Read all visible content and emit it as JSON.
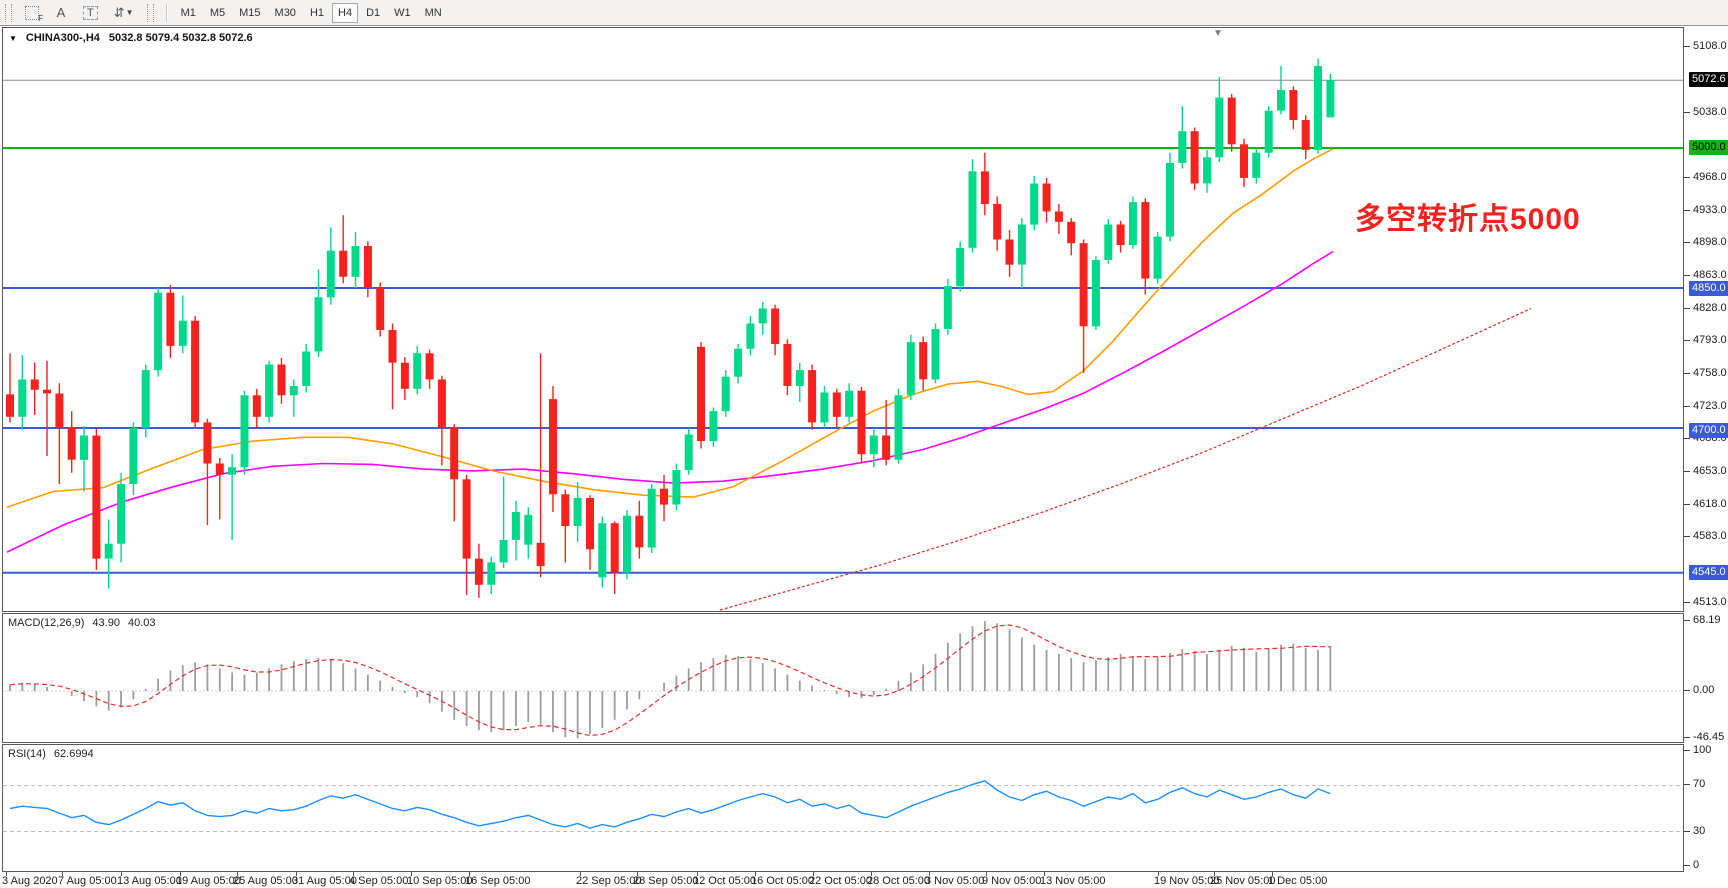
{
  "window": {
    "symbol": "CHINA300-,H4",
    "ohlc_text": "5032.8 5079.4 5032.8 5072.6"
  },
  "toolbar": {
    "tools": [
      {
        "id": "dotted-grid-f-icon",
        "glyph": "F"
      },
      {
        "id": "text-tool-icon",
        "glyph": "A"
      },
      {
        "id": "label-tool-icon",
        "glyph": "T"
      },
      {
        "id": "arrows-tool-icon",
        "glyph": "⇵"
      },
      {
        "id": "dropdown-caret-icon",
        "glyph": "▼"
      }
    ],
    "timeframes": [
      "M1",
      "M5",
      "M15",
      "M30",
      "H1",
      "H4",
      "D1",
      "W1",
      "MN"
    ],
    "active": "H4"
  },
  "colors": {
    "bull": "#00d98a",
    "bear": "#f5221d",
    "ma_fast": "#ff9d00",
    "ma_mid": "#ff00ff",
    "trend": "#d32f22",
    "hline_blue": "#3a5bd9",
    "hline_green": "#0fb40f",
    "price_line": "#8c8c8c",
    "macd_bar": "#9d9d9d",
    "macd_signal": "#e23131",
    "rsi": "#1e90ff",
    "annotation": "#f2231e"
  },
  "chart_data": {
    "type": "candlestick",
    "symbol": "CHINA300-",
    "timeframe": "H4",
    "current": {
      "open": 5032.8,
      "high": 5079.4,
      "low": 5032.8,
      "close": 5072.6
    },
    "annotation": {
      "text": "多空转折点5000"
    },
    "price_axis": {
      "ticks": [
        [
          "5108.0",
          46
        ],
        [
          "5038.0",
          112
        ],
        [
          "4968.0",
          177
        ],
        [
          "4933.0",
          210
        ],
        [
          "4898.0",
          242
        ],
        [
          "4863.0",
          275
        ],
        [
          "4828.0",
          308
        ],
        [
          "4793.0",
          340
        ],
        [
          "4758.0",
          373
        ],
        [
          "4723.0",
          406
        ],
        [
          "4688.0",
          438
        ],
        [
          "4653.0",
          471
        ],
        [
          "4618.0",
          504
        ],
        [
          "4583.0",
          536
        ],
        [
          "4513.0",
          602
        ]
      ],
      "highlights": [
        [
          "5072.6",
          79,
          "#000000",
          "#ffffff"
        ],
        [
          "5000.0",
          147,
          "#0fb40f",
          "#000000"
        ],
        [
          "4850.0",
          288,
          "#3a5bd9",
          "#ffffff"
        ],
        [
          "4700.0",
          430,
          "#3a5bd9",
          "#ffffff"
        ],
        [
          "4545.0",
          572,
          "#3a5bd9",
          "#ffffff"
        ]
      ]
    },
    "hlines": [
      {
        "price": 5072.6,
        "color": "#8c8c8c",
        "w": 1
      },
      {
        "price": 5000.0,
        "color": "#0fb40f",
        "w": 2
      },
      {
        "price": 4850.0,
        "color": "#3a5bd9",
        "w": 2
      },
      {
        "price": 4700.0,
        "color": "#3a5bd9",
        "w": 2
      },
      {
        "price": 4545.0,
        "color": "#3a5bd9",
        "w": 2
      }
    ],
    "time_axis": [
      [
        "3 Aug 2020",
        2
      ],
      [
        "7 Aug 05:00",
        58
      ],
      [
        "13 Aug 05:00",
        117
      ],
      [
        "19 Aug 05:00",
        176
      ],
      [
        "25 Aug 05:00",
        233
      ],
      [
        "31 Aug 05:00",
        292
      ],
      [
        "4 Sep 05:00",
        349
      ],
      [
        "10 Sep 05:00",
        407
      ],
      [
        "16 Sep 05:00",
        465
      ],
      [
        "22 Sep 05:00",
        576
      ],
      [
        "28 Sep 05:00",
        633
      ],
      [
        "12 Oct 05:00",
        693
      ],
      [
        "16 Oct 05:00",
        751
      ],
      [
        "22 Oct 05:00",
        809
      ],
      [
        "28 Oct 05:00",
        867
      ],
      [
        "3 Nov 05:00",
        925
      ],
      [
        "9 Nov 05:00",
        982
      ],
      [
        "13 Nov 05:00",
        1040
      ],
      [
        "19 Nov 05:00",
        1154
      ],
      [
        "25 Nov 05:00",
        1210
      ],
      [
        "1 Dec 05:00",
        1268
      ]
    ],
    "candles": [
      [
        4736,
        4780,
        4706,
        4712
      ],
      [
        4712,
        4778,
        4698,
        4752
      ],
      [
        4752,
        4770,
        4714,
        4741
      ],
      [
        4741,
        4772,
        4670,
        4737
      ],
      [
        4737,
        4748,
        4640,
        4700
      ],
      [
        4700,
        4718,
        4652,
        4666
      ],
      [
        4666,
        4702,
        4632,
        4692
      ],
      [
        4692,
        4700,
        4548,
        4560
      ],
      [
        4560,
        4602,
        4528,
        4576
      ],
      [
        4576,
        4652,
        4556,
        4640
      ],
      [
        4640,
        4706,
        4628,
        4700
      ],
      [
        4700,
        4768,
        4690,
        4762
      ],
      [
        4762,
        4850,
        4755,
        4845
      ],
      [
        4845,
        4853,
        4775,
        4788
      ],
      [
        4788,
        4842,
        4780,
        4815
      ],
      [
        4815,
        4820,
        4700,
        4706
      ],
      [
        4706,
        4710,
        4596,
        4662
      ],
      [
        4662,
        4668,
        4602,
        4650
      ],
      [
        4650,
        4672,
        4580,
        4658
      ],
      [
        4658,
        4740,
        4650,
        4735
      ],
      [
        4735,
        4742,
        4700,
        4712
      ],
      [
        4712,
        4772,
        4706,
        4768
      ],
      [
        4768,
        4775,
        4726,
        4735
      ],
      [
        4735,
        4752,
        4712,
        4745
      ],
      [
        4745,
        4790,
        4738,
        4782
      ],
      [
        4782,
        4870,
        4776,
        4840
      ],
      [
        4840,
        4915,
        4832,
        4890
      ],
      [
        4890,
        4928,
        4855,
        4862
      ],
      [
        4862,
        4910,
        4850,
        4895
      ],
      [
        4895,
        4900,
        4840,
        4850
      ],
      [
        4850,
        4856,
        4798,
        4805
      ],
      [
        4805,
        4812,
        4720,
        4770
      ],
      [
        4770,
        4776,
        4730,
        4742
      ],
      [
        4742,
        4788,
        4736,
        4780
      ],
      [
        4780,
        4784,
        4742,
        4752
      ],
      [
        4752,
        4756,
        4660,
        4700
      ],
      [
        4700,
        4704,
        4600,
        4645
      ],
      [
        4645,
        4650,
        4521,
        4560
      ],
      [
        4560,
        4576,
        4518,
        4532
      ],
      [
        4532,
        4562,
        4522,
        4556
      ],
      [
        4556,
        4648,
        4550,
        4580
      ],
      [
        4580,
        4622,
        4558,
        4610
      ],
      [
        4575,
        4615,
        4560,
        4607
      ],
      [
        4577,
        4780,
        4540,
        4552
      ],
      [
        4731,
        4745,
        4610,
        4629
      ],
      [
        4629,
        4634,
        4556,
        4595
      ],
      [
        4595,
        4642,
        4578,
        4625
      ],
      [
        4625,
        4628,
        4548,
        4570
      ],
      [
        4540,
        4605,
        4529,
        4598
      ],
      [
        4598,
        4600,
        4522,
        4545
      ],
      [
        4545,
        4612,
        4538,
        4606
      ],
      [
        4606,
        4622,
        4560,
        4572
      ],
      [
        4572,
        4640,
        4566,
        4635
      ],
      [
        4635,
        4650,
        4600,
        4618
      ],
      [
        4618,
        4662,
        4612,
        4655
      ],
      [
        4655,
        4700,
        4650,
        4693
      ],
      [
        4787,
        4792,
        4678,
        4686
      ],
      [
        4686,
        4722,
        4680,
        4718
      ],
      [
        4718,
        4762,
        4712,
        4755
      ],
      [
        4755,
        4790,
        4748,
        4785
      ],
      [
        4785,
        4820,
        4778,
        4812
      ],
      [
        4812,
        4835,
        4800,
        4828
      ],
      [
        4828,
        4832,
        4778,
        4790
      ],
      [
        4790,
        4795,
        4735,
        4745
      ],
      [
        4745,
        4770,
        4728,
        4762
      ],
      [
        4762,
        4768,
        4698,
        4706
      ],
      [
        4706,
        4745,
        4700,
        4738
      ],
      [
        4738,
        4742,
        4700,
        4712
      ],
      [
        4712,
        4748,
        4706,
        4740
      ],
      [
        4740,
        4744,
        4662,
        4672
      ],
      [
        4672,
        4700,
        4658,
        4692
      ],
      [
        4692,
        4730,
        4660,
        4666
      ],
      [
        4666,
        4742,
        4662,
        4735
      ],
      [
        4735,
        4800,
        4730,
        4792
      ],
      [
        4792,
        4798,
        4740,
        4752
      ],
      [
        4752,
        4812,
        4748,
        4806
      ],
      [
        4806,
        4860,
        4800,
        4852
      ],
      [
        4852,
        4900,
        4846,
        4893
      ],
      [
        4893,
        4988,
        4888,
        4975
      ],
      [
        4975,
        4995,
        4928,
        4940
      ],
      [
        4940,
        4948,
        4890,
        4902
      ],
      [
        4902,
        4912,
        4862,
        4875
      ],
      [
        4875,
        4925,
        4850,
        4918
      ],
      [
        4918,
        4970,
        4912,
        4962
      ],
      [
        4962,
        4968,
        4920,
        4932
      ],
      [
        4932,
        4940,
        4908,
        4921
      ],
      [
        4921,
        4925,
        4885,
        4898
      ],
      [
        4898,
        4902,
        4759,
        4809
      ],
      [
        4809,
        4884,
        4805,
        4880
      ],
      [
        4880,
        4924,
        4876,
        4918
      ],
      [
        4918,
        4922,
        4888,
        4896
      ],
      [
        4896,
        4948,
        4892,
        4942
      ],
      [
        4942,
        4946,
        4843,
        4860
      ],
      [
        4860,
        4910,
        4855,
        4905
      ],
      [
        4905,
        4995,
        4900,
        4984
      ],
      [
        4984,
        5045,
        4978,
        5018
      ],
      [
        5018,
        5022,
        4955,
        4962
      ],
      [
        4962,
        4998,
        4952,
        4990
      ],
      [
        4990,
        5076,
        4985,
        5054
      ],
      [
        5054,
        5058,
        4996,
        5004
      ],
      [
        5004,
        5010,
        4958,
        4968
      ],
      [
        4968,
        5000,
        4962,
        4995
      ],
      [
        4995,
        5045,
        4990,
        5040
      ],
      [
        5040,
        5088,
        5036,
        5062
      ],
      [
        5062,
        5066,
        5020,
        5030
      ],
      [
        5030,
        5035,
        4988,
        4998
      ],
      [
        4998,
        5096,
        4994,
        5088
      ],
      [
        5032.8,
        5079.4,
        5032.8,
        5072.6
      ]
    ],
    "moving_averages": {
      "fast": [
        [
          4,
          4615
        ],
        [
          50,
          4632
        ],
        [
          100,
          4636
        ],
        [
          150,
          4657
        ],
        [
          200,
          4677
        ],
        [
          250,
          4686
        ],
        [
          300,
          4690
        ],
        [
          345,
          4690
        ],
        [
          390,
          4683
        ],
        [
          440,
          4669
        ],
        [
          490,
          4654
        ],
        [
          540,
          4643
        ],
        [
          590,
          4634
        ],
        [
          640,
          4628
        ],
        [
          690,
          4626
        ],
        [
          730,
          4637
        ],
        [
          780,
          4665
        ],
        [
          830,
          4695
        ],
        [
          870,
          4718
        ],
        [
          910,
          4736
        ],
        [
          945,
          4747
        ],
        [
          975,
          4750
        ],
        [
          1000,
          4744
        ],
        [
          1025,
          4736
        ],
        [
          1050,
          4739
        ],
        [
          1080,
          4761
        ],
        [
          1110,
          4793
        ],
        [
          1140,
          4830
        ],
        [
          1170,
          4866
        ],
        [
          1200,
          4900
        ],
        [
          1230,
          4930
        ],
        [
          1260,
          4951
        ],
        [
          1290,
          4975
        ],
        [
          1310,
          4988
        ],
        [
          1330,
          4999
        ]
      ],
      "mid": [
        [
          4,
          4567
        ],
        [
          60,
          4596
        ],
        [
          120,
          4621
        ],
        [
          170,
          4637
        ],
        [
          220,
          4651
        ],
        [
          270,
          4659
        ],
        [
          320,
          4662
        ],
        [
          370,
          4661
        ],
        [
          420,
          4656
        ],
        [
          470,
          4654
        ],
        [
          520,
          4656
        ],
        [
          570,
          4651
        ],
        [
          620,
          4645
        ],
        [
          670,
          4641
        ],
        [
          720,
          4643
        ],
        [
          770,
          4649
        ],
        [
          820,
          4656
        ],
        [
          870,
          4665
        ],
        [
          920,
          4677
        ],
        [
          960,
          4690
        ],
        [
          1000,
          4705
        ],
        [
          1040,
          4720
        ],
        [
          1080,
          4737
        ],
        [
          1120,
          4759
        ],
        [
          1160,
          4782
        ],
        [
          1200,
          4806
        ],
        [
          1240,
          4830
        ],
        [
          1280,
          4855
        ],
        [
          1310,
          4876
        ],
        [
          1330,
          4889
        ]
      ],
      "slow_trend": [
        [
          717,
          4505
        ],
        [
          800,
          4530
        ],
        [
          880,
          4554
        ],
        [
          960,
          4581
        ],
        [
          1040,
          4610
        ],
        [
          1120,
          4641
        ],
        [
          1200,
          4674
        ],
        [
          1280,
          4710
        ],
        [
          1360,
          4746
        ],
        [
          1440,
          4785
        ],
        [
          1528,
          4828
        ]
      ]
    },
    "macd": {
      "name": "MACD(12,26,9)",
      "main": "43.90",
      "signal": "40.03",
      "ticks": [
        [
          "68.19",
          620
        ],
        [
          "0.00",
          690
        ],
        [
          "-46.45",
          737
        ]
      ],
      "histogram": [
        6,
        8,
        7,
        4,
        0,
        -5,
        -10,
        -15,
        -19,
        -16,
        -8,
        2,
        12,
        20,
        25,
        28,
        26,
        22,
        18,
        16,
        18,
        22,
        26,
        29,
        31,
        32,
        30,
        27,
        22,
        16,
        10,
        4,
        -2,
        -6,
        -12,
        -20,
        -28,
        -34,
        -38,
        -40,
        -38,
        -34,
        -30,
        -33,
        -40,
        -45,
        -46,
        -42,
        -36,
        -28,
        -18,
        -8,
        0,
        8,
        15,
        22,
        28,
        32,
        35,
        34,
        31,
        27,
        22,
        16,
        10,
        5,
        1,
        -3,
        -6,
        -7,
        -4,
        2,
        10,
        18,
        26,
        36,
        47,
        56,
        63,
        68,
        66,
        60,
        52,
        45,
        40,
        36,
        32,
        28,
        30,
        33,
        36,
        34,
        31,
        33,
        37,
        41,
        39,
        36,
        40,
        44,
        42,
        38,
        41,
        45,
        46,
        42,
        40,
        44
      ]
    },
    "rsi": {
      "name": "RSI(14)",
      "value": "62.6994",
      "ticks": [
        [
          "100",
          750
        ],
        [
          "70",
          784
        ],
        [
          "30",
          831
        ],
        [
          "0",
          865
        ]
      ],
      "levels": [
        70,
        30
      ],
      "values": [
        50,
        52,
        51,
        50,
        46,
        42,
        44,
        38,
        36,
        40,
        45,
        50,
        56,
        53,
        55,
        48,
        44,
        43,
        44,
        48,
        46,
        50,
        48,
        49,
        52,
        57,
        61,
        59,
        62,
        58,
        54,
        50,
        48,
        51,
        49,
        45,
        42,
        38,
        35,
        37,
        39,
        42,
        44,
        40,
        36,
        34,
        37,
        33,
        36,
        34,
        38,
        41,
        45,
        43,
        47,
        50,
        46,
        49,
        53,
        57,
        60,
        63,
        60,
        55,
        58,
        52,
        54,
        50,
        53,
        46,
        44,
        42,
        47,
        52,
        56,
        60,
        64,
        67,
        71,
        74,
        66,
        60,
        57,
        62,
        65,
        60,
        57,
        52,
        56,
        60,
        58,
        63,
        55,
        58,
        64,
        68,
        63,
        60,
        66,
        62,
        58,
        60,
        64,
        67,
        62,
        59,
        67,
        63
      ]
    }
  }
}
